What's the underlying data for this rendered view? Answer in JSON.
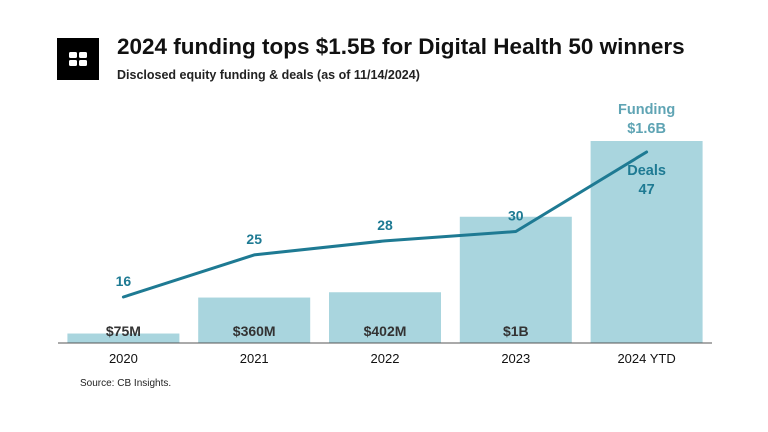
{
  "header": {
    "title": "2024 funding tops $1.5B for Digital Health 50 winners",
    "subtitle": "Disclosed equity funding & deals (as of 11/14/2024)",
    "logo_icon": "cb-insights-logo-icon"
  },
  "source": "Source: CB Insights.",
  "colors": {
    "bar": "#a9d5de",
    "line": "#1e7a93",
    "funding_label": "#5fa4b4",
    "axis": "#555555"
  },
  "chart_data": {
    "type": "bar",
    "categories": [
      "2020",
      "2021",
      "2022",
      "2023",
      "2024 YTD"
    ],
    "series": [
      {
        "name": "Funding",
        "type": "bar",
        "values": [
          75,
          360,
          402,
          1000,
          1600
        ],
        "value_labels": [
          "$75M",
          "$360M",
          "$402M",
          "$1B",
          "$1.6B"
        ]
      },
      {
        "name": "Deals",
        "type": "line",
        "values": [
          16,
          25,
          28,
          30,
          47
        ],
        "value_labels": [
          "16",
          "25",
          "28",
          "30",
          "47"
        ]
      }
    ],
    "legend": {
      "funding_title": "Funding",
      "funding_value": "$1.6B",
      "deals_title": "Deals",
      "deals_value": "47"
    },
    "ylim_funding": [
      0,
      1600
    ],
    "ylim_deals": [
      0,
      47
    ],
    "grid": false
  }
}
